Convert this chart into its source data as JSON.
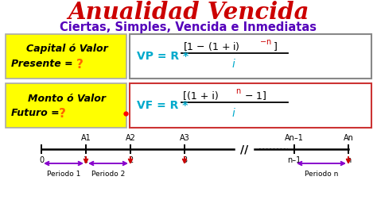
{
  "title": "Anualidad Vencida",
  "title_color": "#cc0000",
  "subtitle": "Ciertas, Simples, Vencida e Inmediatas",
  "subtitle_color": "#5500bb",
  "bg_color": "#ffffff",
  "box1_bg": "#ffff00",
  "box1_text_color": "#000000",
  "box1_question_color": "#ff6600",
  "box2_bg": "#ffff00",
  "box2_text_color": "#000000",
  "box2_question_color": "#ff6600",
  "formula1_border": "#888888",
  "formula2_border": "#cc3333",
  "formula_cyan": "#00aacc",
  "formula_red": "#cc0000",
  "formula_black": "#000000",
  "arrow_color_purple": "#8800cc",
  "arrow_color_red": "#cc0000",
  "periodo1": "Periodo 1",
  "periodo2": "Periodo 2",
  "periodon": "Periodo n"
}
